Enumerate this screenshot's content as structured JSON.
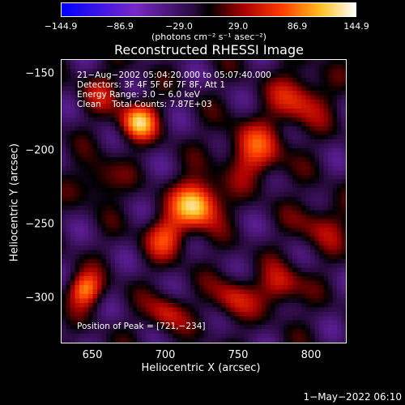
{
  "colorbar": {
    "ticks": [
      "−144.9",
      "−86.9",
      "−29.0",
      "29.0",
      "86.9",
      "144.9"
    ],
    "units": "(photons cm⁻² s⁻¹ asec⁻²)"
  },
  "title": "Reconstructed RHESSI Image",
  "info": {
    "line1": "21−Aug−2002 05:04:20.000 to 05:07:40.000",
    "line2": "Detectors: 3F 4F 5F 6F 7F 8F, Att 1",
    "line3": "Energy Range: 3.0 − 6.0 keV",
    "line4": "Clean    Total Counts: 7.87E+03",
    "peak": "Position of Peak = [721,−234]"
  },
  "axes": {
    "xlabel": "Heliocentric X (arcsec)",
    "ylabel": "Heliocentric Y (arcsec)",
    "xticks": [
      "650",
      "700",
      "750",
      "800"
    ],
    "yticks": [
      "−150",
      "−200",
      "−250",
      "−300"
    ],
    "x_range": [
      629,
      822
    ],
    "y_range": [
      -330,
      -138
    ]
  },
  "timestamp": "1−May−2022 06:10",
  "image": {
    "peak": [
      721,
      -234
    ],
    "sources": [
      {
        "x": 721,
        "y": -236,
        "amp": 1.0,
        "s": 11
      },
      {
        "x": 681,
        "y": -180,
        "amp": 0.85,
        "s": 9
      },
      {
        "x": 645,
        "y": -294,
        "amp": 0.75,
        "s": 8
      },
      {
        "x": 700,
        "y": -258,
        "amp": 0.55,
        "s": 10
      },
      {
        "x": 760,
        "y": -200,
        "amp": 0.55,
        "s": 14
      },
      {
        "x": 790,
        "y": -165,
        "amp": 0.5,
        "s": 13
      },
      {
        "x": 745,
        "y": -300,
        "amp": 0.45,
        "s": 10
      },
      {
        "x": 778,
        "y": -292,
        "amp": 0.5,
        "s": 10
      },
      {
        "x": 700,
        "y": -310,
        "amp": 0.45,
        "s": 9
      },
      {
        "x": 655,
        "y": -220,
        "amp": 0.35,
        "s": 10
      },
      {
        "x": 805,
        "y": -250,
        "amp": 0.35,
        "s": 12
      },
      {
        "x": 655,
        "y": -160,
        "amp": 0.3,
        "s": 10
      }
    ]
  }
}
